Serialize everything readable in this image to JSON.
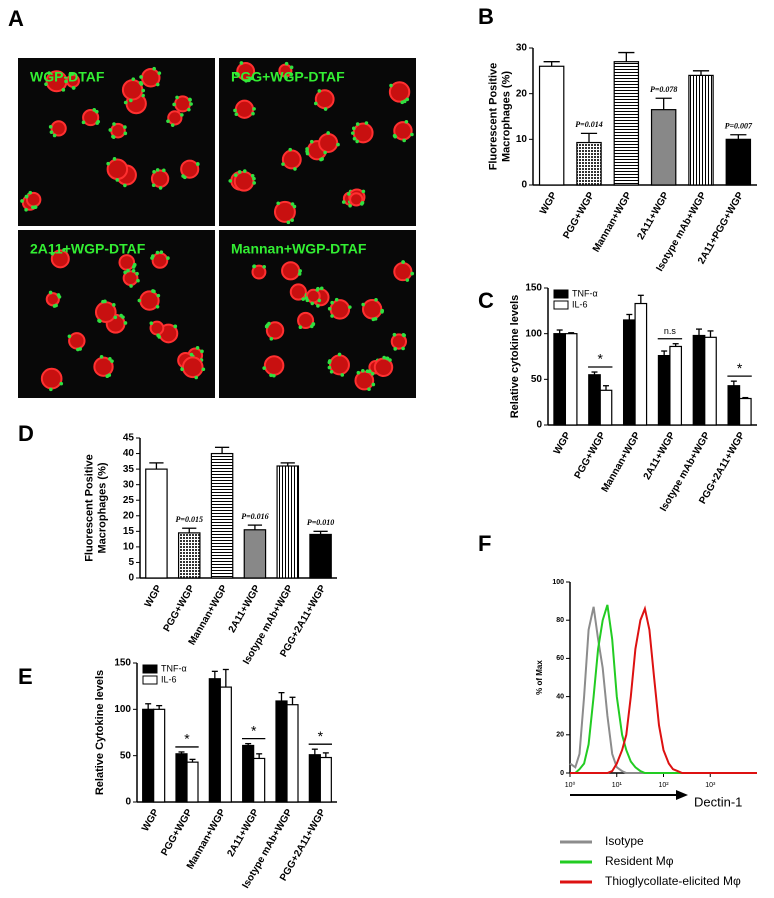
{
  "panel_a": {
    "label": "A",
    "captions": [
      "WGP-DTAF",
      "PGG+WGP-DTAF",
      "2A11+WGP-DTAF",
      "Mannan+WGP-DTAF"
    ]
  },
  "chart_data": [
    {
      "type": "bar",
      "panel": "B",
      "ylabel": [
        "Fluorescent Positive",
        "Macrophages (%)"
      ],
      "categories": [
        "WGP",
        "PGG+WGP",
        "Mannan+WGP",
        "2A11+WGP",
        "Isotype mAb+WGP",
        "2A11+PGG+WGP"
      ],
      "values": [
        26,
        9.3,
        27,
        16.5,
        24,
        10
      ],
      "errors": [
        1,
        2,
        2,
        2.5,
        1,
        1
      ],
      "fills": [
        "white",
        "dots",
        "hstripes",
        "gray",
        "vstripes",
        "black"
      ],
      "ylim": [
        0,
        30
      ],
      "yticks": [
        0,
        10,
        20,
        30
      ],
      "annotations": [
        {
          "text": "P=0.014",
          "index": 1
        },
        {
          "text": "P=0.078",
          "index": 3
        },
        {
          "text": "P=0.007",
          "index": 5
        }
      ]
    },
    {
      "type": "bar",
      "panel": "C",
      "ylabel": [
        "Relative cytokine levels"
      ],
      "categories": [
        "WGP",
        "PGG+WGP",
        "Mannan+WGP",
        "2A11+WGP",
        "Isotype mAb+WGP",
        "PGG+2A11+WGP"
      ],
      "series": [
        {
          "name": "TNF-α",
          "color": "#000000",
          "values": [
            100,
            55,
            115,
            76,
            98,
            43
          ],
          "errors": [
            4,
            3,
            6,
            5,
            7,
            5
          ]
        },
        {
          "name": "IL-6",
          "color": "#ffffff",
          "values": [
            100,
            38,
            133,
            86,
            96,
            29
          ],
          "errors": [
            1,
            5,
            9,
            3,
            7,
            1
          ]
        }
      ],
      "ylim": [
        0,
        150
      ],
      "yticks": [
        0,
        50,
        100,
        150
      ],
      "annotations": [
        {
          "text": "*",
          "index": 1
        },
        {
          "text": "n.s",
          "index": 3
        },
        {
          "text": "*",
          "index": 5
        }
      ]
    },
    {
      "type": "bar",
      "panel": "D",
      "ylabel": [
        "Fluorescent Positive",
        "Macrophages (%)"
      ],
      "categories": [
        "WGP",
        "PGG+WGP",
        "Mannan+WGP",
        "2A11+WGP",
        "Isotype mAb+WGP",
        "PGG+2A11+WGP"
      ],
      "values": [
        35,
        14.5,
        40,
        15.5,
        36,
        14
      ],
      "errors": [
        2,
        1.5,
        2,
        1.5,
        1,
        1
      ],
      "fills": [
        "white",
        "dots",
        "hstripes",
        "gray",
        "vstripes",
        "black"
      ],
      "ylim": [
        0,
        45
      ],
      "yticks": [
        0,
        5,
        10,
        15,
        20,
        25,
        30,
        35,
        40,
        45
      ],
      "annotations": [
        {
          "text": "P=0.015",
          "index": 1
        },
        {
          "text": "P=0.016",
          "index": 3
        },
        {
          "text": "P=0.010",
          "index": 5
        }
      ]
    },
    {
      "type": "bar",
      "panel": "E",
      "ylabel": [
        "Relative Cytokine levels"
      ],
      "categories": [
        "WGP",
        "PGG+WGP",
        "Mannan+WGP",
        "2A11+WGP",
        "Isotype mAb+WGP",
        "PGG+2A11+WGP"
      ],
      "series": [
        {
          "name": "TNF-α",
          "color": "#000000",
          "values": [
            100,
            52,
            133,
            61,
            109,
            51
          ],
          "errors": [
            6,
            2,
            8,
            2,
            9,
            6
          ]
        },
        {
          "name": "IL-6",
          "color": "#ffffff",
          "values": [
            100,
            43,
            124,
            47,
            105,
            48
          ],
          "errors": [
            4,
            3,
            19,
            5,
            8,
            5
          ]
        }
      ],
      "ylim": [
        0,
        150
      ],
      "yticks": [
        0,
        50,
        100,
        150
      ],
      "annotations": [
        {
          "text": "*",
          "index": 1
        },
        {
          "text": "*",
          "index": 3
        },
        {
          "text": "*",
          "index": 5
        }
      ]
    },
    {
      "type": "line",
      "panel": "F",
      "ylabel": [
        "% of Max"
      ],
      "xlabel": "Dectin-1",
      "log_x": true,
      "x": [
        1,
        1.3,
        1.6,
        2,
        2.5,
        3.2,
        4,
        5,
        6.3,
        8,
        10,
        13,
        16,
        20,
        25,
        32,
        40,
        50,
        63,
        80,
        100,
        130,
        160,
        200,
        250,
        320,
        400,
        500,
        630,
        800,
        1000,
        1300,
        1600,
        2000,
        2500,
        3200,
        4000,
        5000,
        6300,
        8000,
        10000
      ],
      "series": [
        {
          "name": "Isotype",
          "color": "#8c8c8c",
          "values": [
            5,
            3,
            10,
            40,
            75,
            87,
            70,
            55,
            30,
            10,
            3,
            1,
            0,
            0,
            0,
            0,
            0,
            0,
            0,
            0,
            0,
            0,
            0,
            0,
            0,
            0,
            0,
            0,
            0,
            0,
            0,
            0,
            0,
            0,
            0,
            0,
            0,
            0,
            0,
            0,
            0
          ]
        },
        {
          "name": "Resident Mφ",
          "color": "#22cc22",
          "values": [
            0,
            0,
            2,
            5,
            15,
            40,
            65,
            80,
            88,
            70,
            40,
            20,
            12,
            6,
            3,
            1,
            0,
            0,
            0,
            0,
            0,
            0,
            0,
            0,
            0,
            0,
            0,
            0,
            0,
            0,
            0,
            0,
            0,
            0,
            0,
            0,
            0,
            0,
            0,
            0,
            0
          ]
        },
        {
          "name": "Thioglycollate-elicited Mφ",
          "color": "#dd1111",
          "values": [
            0,
            0,
            0,
            0,
            0,
            0,
            0,
            0,
            0,
            1,
            5,
            12,
            20,
            40,
            65,
            80,
            86,
            75,
            50,
            25,
            12,
            5,
            2,
            1,
            0,
            0,
            0,
            0,
            0,
            0,
            0,
            0,
            0,
            0,
            0,
            0,
            0,
            0,
            0,
            0,
            0
          ]
        }
      ],
      "xlim": [
        1,
        10000
      ],
      "xticks": [
        {
          "value": 1,
          "label": "10⁰"
        },
        {
          "value": 10,
          "label": "10¹"
        },
        {
          "value": 100,
          "label": "10²"
        },
        {
          "value": 1000,
          "label": "10³"
        }
      ],
      "ylim": [
        0,
        100
      ],
      "yticks": [
        0,
        20,
        40,
        60,
        80,
        100
      ],
      "legend": "below"
    }
  ]
}
